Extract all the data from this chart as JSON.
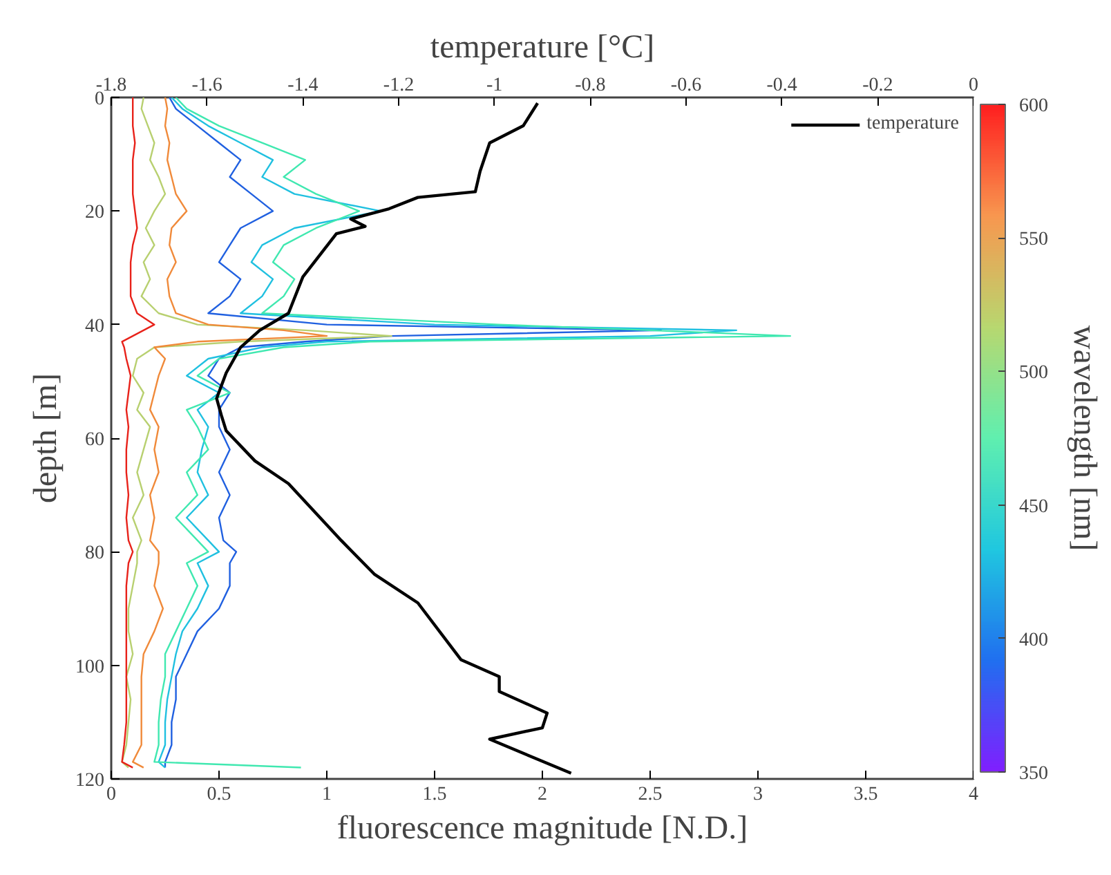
{
  "chart_data": {
    "type": "line",
    "orientation": "horizontal",
    "xlabel": "fluorescence magnitude [N.D.]",
    "ylabel": "depth [m]",
    "x2label": "temperature [°C]",
    "clabel": "wavelength [nm]",
    "xlim": [
      0,
      4
    ],
    "xticks": [
      0,
      0.5,
      1,
      1.5,
      2,
      2.5,
      3,
      3.5,
      4
    ],
    "ylim": [
      120,
      0
    ],
    "yticks": [
      0,
      20,
      40,
      60,
      80,
      100,
      120
    ],
    "x2lim": [
      -1.8,
      0
    ],
    "x2ticks": [
      -1.8,
      -1.6,
      -1.4,
      -1.2,
      -1,
      -0.8,
      -0.6,
      -0.4,
      -0.2,
      0
    ],
    "clim": [
      350,
      600
    ],
    "cticks": [
      350,
      400,
      450,
      500,
      550,
      600
    ],
    "legend": "top right",
    "x": [
      0,
      2,
      5,
      8,
      11,
      14,
      17,
      20,
      23,
      26,
      29,
      32,
      35,
      38,
      40,
      41,
      42,
      43,
      44,
      46,
      49,
      52,
      55,
      58,
      62,
      66,
      70,
      74,
      78,
      80,
      82,
      86,
      90,
      94,
      98,
      102,
      106,
      110,
      114,
      117,
      118
    ],
    "series": [
      {
        "color": "#e8221a",
        "values": [
          0.1,
          0.1,
          0.1,
          0.11,
          0.1,
          0.1,
          0.1,
          0.11,
          0.12,
          0.1,
          0.09,
          0.09,
          0.09,
          0.12,
          0.2,
          0.15,
          0.1,
          0.05,
          0.06,
          0.07,
          0.09,
          0.08,
          0.07,
          0.08,
          0.07,
          0.07,
          0.08,
          0.07,
          0.08,
          0.1,
          0.08,
          0.07,
          0.07,
          0.07,
          0.07,
          0.07,
          0.07,
          0.07,
          0.06,
          0.05,
          0.1
        ]
      },
      {
        "color": "#f08a3a",
        "values": [
          0.25,
          0.26,
          0.25,
          0.27,
          0.26,
          0.28,
          0.3,
          0.35,
          0.28,
          0.27,
          0.3,
          0.26,
          0.27,
          0.3,
          0.45,
          0.8,
          1.0,
          0.4,
          0.2,
          0.25,
          0.22,
          0.2,
          0.18,
          0.22,
          0.2,
          0.22,
          0.18,
          0.2,
          0.18,
          0.22,
          0.22,
          0.2,
          0.24,
          0.2,
          0.15,
          0.14,
          0.14,
          0.14,
          0.14,
          0.1,
          0.15
        ]
      },
      {
        "color": "#b8d070",
        "values": [
          0.15,
          0.14,
          0.17,
          0.2,
          0.18,
          0.22,
          0.25,
          0.2,
          0.16,
          0.2,
          0.15,
          0.18,
          0.14,
          0.22,
          0.4,
          0.9,
          1.3,
          0.6,
          0.2,
          0.12,
          0.1,
          0.15,
          0.12,
          0.18,
          0.15,
          0.12,
          0.15,
          0.1,
          0.14,
          0.12,
          0.12,
          0.1,
          0.08,
          0.08,
          0.1,
          0.07,
          0.09,
          0.08,
          0.07,
          0.05,
          0.08
        ]
      },
      {
        "color": "#40e8b0",
        "values": [
          0.3,
          0.35,
          0.5,
          0.7,
          0.9,
          0.8,
          0.95,
          1.15,
          0.95,
          0.8,
          0.75,
          0.85,
          0.8,
          0.7,
          1.8,
          2.5,
          3.15,
          1.2,
          0.8,
          0.5,
          0.4,
          0.55,
          0.35,
          0.4,
          0.45,
          0.35,
          0.4,
          0.3,
          0.4,
          0.45,
          0.35,
          0.4,
          0.35,
          0.3,
          0.25,
          0.25,
          0.23,
          0.22,
          0.22,
          0.2,
          0.88
        ]
      },
      {
        "color": "#20c0e0",
        "values": [
          0.28,
          0.33,
          0.45,
          0.6,
          0.75,
          0.7,
          0.85,
          1.25,
          0.85,
          0.7,
          0.65,
          0.75,
          0.7,
          0.6,
          1.5,
          2.9,
          2.5,
          1.0,
          0.7,
          0.45,
          0.35,
          0.5,
          0.4,
          0.45,
          0.42,
          0.4,
          0.45,
          0.35,
          0.45,
          0.5,
          0.4,
          0.45,
          0.4,
          0.33,
          0.3,
          0.28,
          0.26,
          0.25,
          0.25,
          0.22,
          0.25
        ]
      },
      {
        "color": "#2060e0",
        "values": [
          0.27,
          0.3,
          0.4,
          0.5,
          0.6,
          0.55,
          0.65,
          0.75,
          0.6,
          0.55,
          0.5,
          0.6,
          0.55,
          0.45,
          1.0,
          2.55,
          1.3,
          0.9,
          0.6,
          0.5,
          0.45,
          0.55,
          0.5,
          0.5,
          0.55,
          0.5,
          0.55,
          0.5,
          0.52,
          0.58,
          0.55,
          0.55,
          0.5,
          0.4,
          0.35,
          0.3,
          0.3,
          0.28,
          0.28,
          0.25,
          0.25
        ]
      },
      {
        "name": "temperature",
        "color": "#000000",
        "axis": "x2",
        "x": [
          1,
          5,
          8,
          13,
          16.6,
          17.6,
          19.6,
          21.4,
          22.7,
          24,
          31.6,
          38,
          41,
          44,
          48.5,
          53,
          56,
          58.7,
          64,
          68,
          78,
          84,
          89,
          99,
          102,
          104.6,
          108.4,
          111,
          113,
          119
        ],
        "values": [
          -0.91,
          -0.94,
          -1.01,
          -1.03,
          -1.04,
          -1.16,
          -1.22,
          -1.3,
          -1.27,
          -1.33,
          -1.4,
          -1.43,
          -1.49,
          -1.53,
          -1.56,
          -1.58,
          -1.57,
          -1.56,
          -1.5,
          -1.43,
          -1.32,
          -1.25,
          -1.16,
          -1.07,
          -0.99,
          -0.99,
          -0.89,
          -0.9,
          -1.01,
          -0.84
        ]
      }
    ]
  }
}
